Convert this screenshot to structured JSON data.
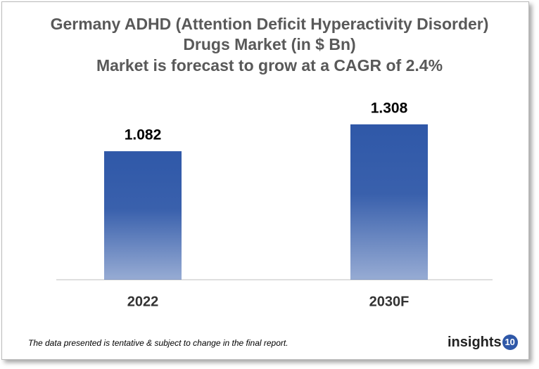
{
  "chart_data": {
    "type": "bar",
    "title": "Germany ADHD (Attention Deficit Hyperactivity Disorder) Drugs Market (in $ Bn)",
    "subtitle": "Market is forecast to grow at a CAGR of 2.4%",
    "categories": [
      "2022",
      "2030F"
    ],
    "values": [
      1.082,
      1.308
    ],
    "color": "#2f58a8",
    "footnote": "The data presented is tentative & subject to change in the final report.",
    "logo": {
      "text": "insights",
      "badge": "10"
    }
  }
}
